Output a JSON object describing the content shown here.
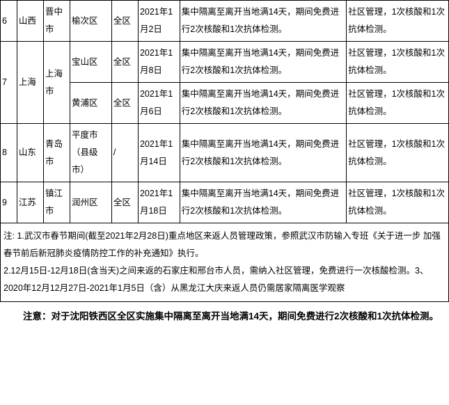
{
  "table": {
    "rows": [
      {
        "num": "6",
        "province": "山西",
        "city": "晋中市",
        "sub": [
          {
            "district": "榆次区",
            "scope": "全区",
            "date": "2021年1月2日",
            "policy1": "集中隔离至离开当地满14天，期间免费进行2次核酸和1次抗体检测。",
            "policy2": "社区管理，1次核酸和1次抗体检测。"
          }
        ]
      },
      {
        "num": "7",
        "province": "上海",
        "city": "上海市",
        "sub": [
          {
            "district": "宝山区",
            "scope": "全区",
            "date": "2021年1月8日",
            "policy1": "集中隔离至离开当地满14天，期间免费进行2次核酸和1次抗体检测。",
            "policy2": "社区管理，1次核酸和1次抗体检测。"
          },
          {
            "district": "黄浦区",
            "scope": "全区",
            "date": "2021年1月6日",
            "policy1": "集中隔离至离开当地满14天，期间免费进行2次核酸和1次抗体检测。",
            "policy2": "社区管理，1次核酸和1次抗体检测。"
          }
        ]
      },
      {
        "num": "8",
        "province": "山东",
        "city": "青岛市",
        "sub": [
          {
            "district": "平度市（县级市）",
            "scope": "/",
            "date": "2021年1月14日",
            "policy1": "集中隔离至离开当地满14天，期间免费进行2次核酸和1次抗体检测。",
            "policy2": "社区管理，1次核酸和1次抗体检测。"
          }
        ]
      },
      {
        "num": "9",
        "province": "江苏",
        "city": "镇江市",
        "sub": [
          {
            "district": "润州区",
            "scope": "全区",
            "date": "2021年1月18日",
            "policy1": "集中隔离至离开当地满14天，期间免费进行2次核酸和1次抗体检测。",
            "policy2": "社区管理，1次核酸和1次抗体检测。"
          }
        ]
      }
    ],
    "notes": "注: 1.武汉市春节期间(截至2021年2月28日)重点地区来返人员管理政策，参照武汉市防输入专班《关于进一步 加强春节前后新冠肺炎疫情防控工作的补充通知》执行。\n2.12月15日-12月18日(含当天)之间来返的石家庄和邢台市人员，需纳入社区管理，免费进行一次核酸检测。3、2020年12月12月27日-2021年1月5日（含）从黑龙江大庆来返人员仍需居家隔离医学观察"
  },
  "bottom_note": "注意：对于沈阳铁西区全区实施集中隔离至离开当地满14天，期间免费进行2次核酸和1次抗体检测。"
}
